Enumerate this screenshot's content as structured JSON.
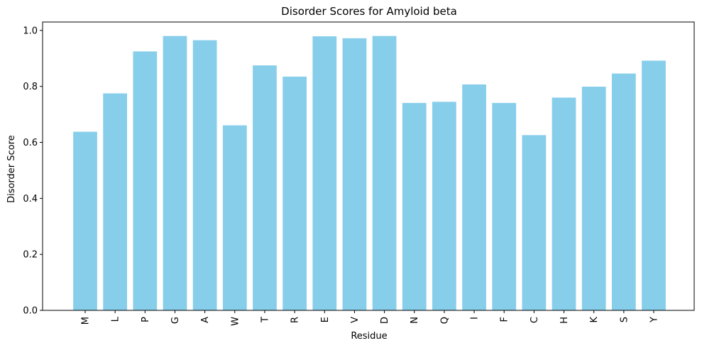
{
  "chart_data": {
    "type": "bar",
    "title": "Disorder Scores for Amyloid beta",
    "xlabel": "Residue",
    "ylabel": "Disorder Score",
    "categories": [
      "M",
      "L",
      "P",
      "G",
      "A",
      "W",
      "T",
      "R",
      "E",
      "V",
      "D",
      "N",
      "Q",
      "I",
      "F",
      "C",
      "H",
      "K",
      "S",
      "Y"
    ],
    "values": [
      0.638,
      0.775,
      0.925,
      0.98,
      0.965,
      0.661,
      0.875,
      0.835,
      0.979,
      0.972,
      0.98,
      0.741,
      0.745,
      0.807,
      0.741,
      0.626,
      0.76,
      0.799,
      0.846,
      0.892
    ],
    "ylim": [
      0,
      1.03
    ],
    "yticks": [
      "0.0",
      "0.2",
      "0.4",
      "0.6",
      "0.8",
      "1.0"
    ],
    "bar_color": "#87CEEB",
    "grid": false,
    "legend": "none"
  }
}
